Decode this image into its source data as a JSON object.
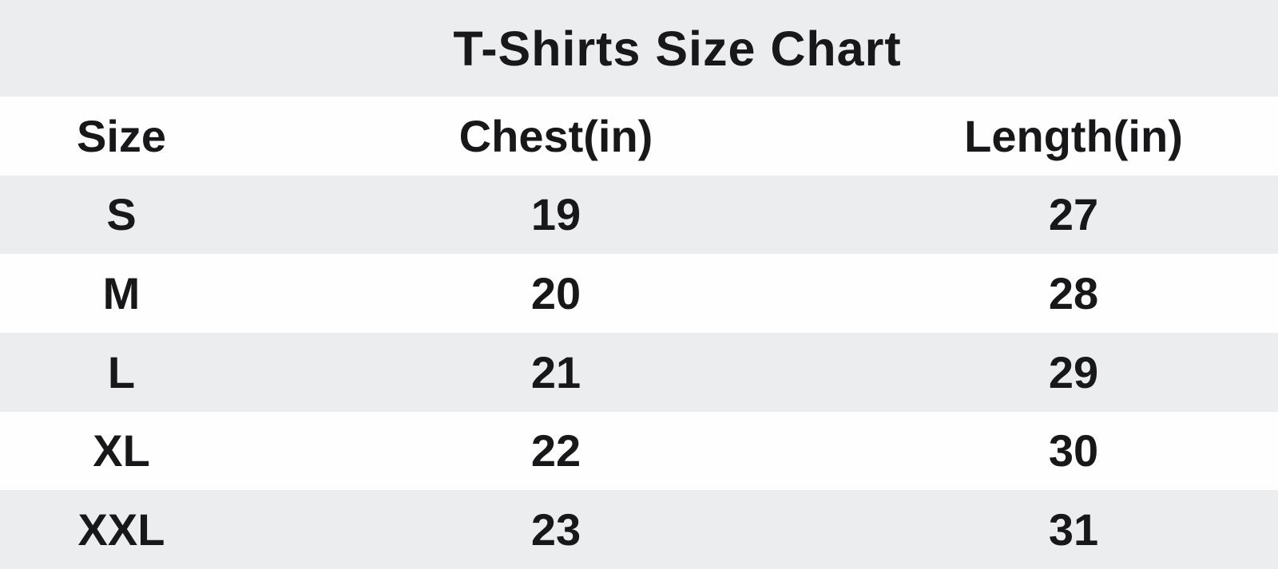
{
  "title": "T-Shirts Size Chart",
  "columns": [
    "Size",
    "Chest(in)",
    "Length(in)"
  ],
  "rows": [
    {
      "size": "S",
      "chest": "19",
      "length": "27"
    },
    {
      "size": "M",
      "chest": "20",
      "length": "28"
    },
    {
      "size": "L",
      "chest": "21",
      "length": "29"
    },
    {
      "size": "XL",
      "chest": "22",
      "length": "30"
    },
    {
      "size": "XXL",
      "chest": "23",
      "length": "31"
    }
  ],
  "colors": {
    "band_gray": "#ebedee",
    "band_white": "#fefefe",
    "text": "#18181a"
  },
  "chart_data": {
    "type": "table",
    "title": "T-Shirts Size Chart",
    "columns": [
      "Size",
      "Chest(in)",
      "Length(in)"
    ],
    "rows": [
      [
        "S",
        19,
        27
      ],
      [
        "M",
        20,
        28
      ],
      [
        "L",
        21,
        29
      ],
      [
        "XL",
        22,
        30
      ],
      [
        "XXL",
        23,
        31
      ]
    ],
    "layout": "striped-rows, centered columns, title band on top"
  }
}
